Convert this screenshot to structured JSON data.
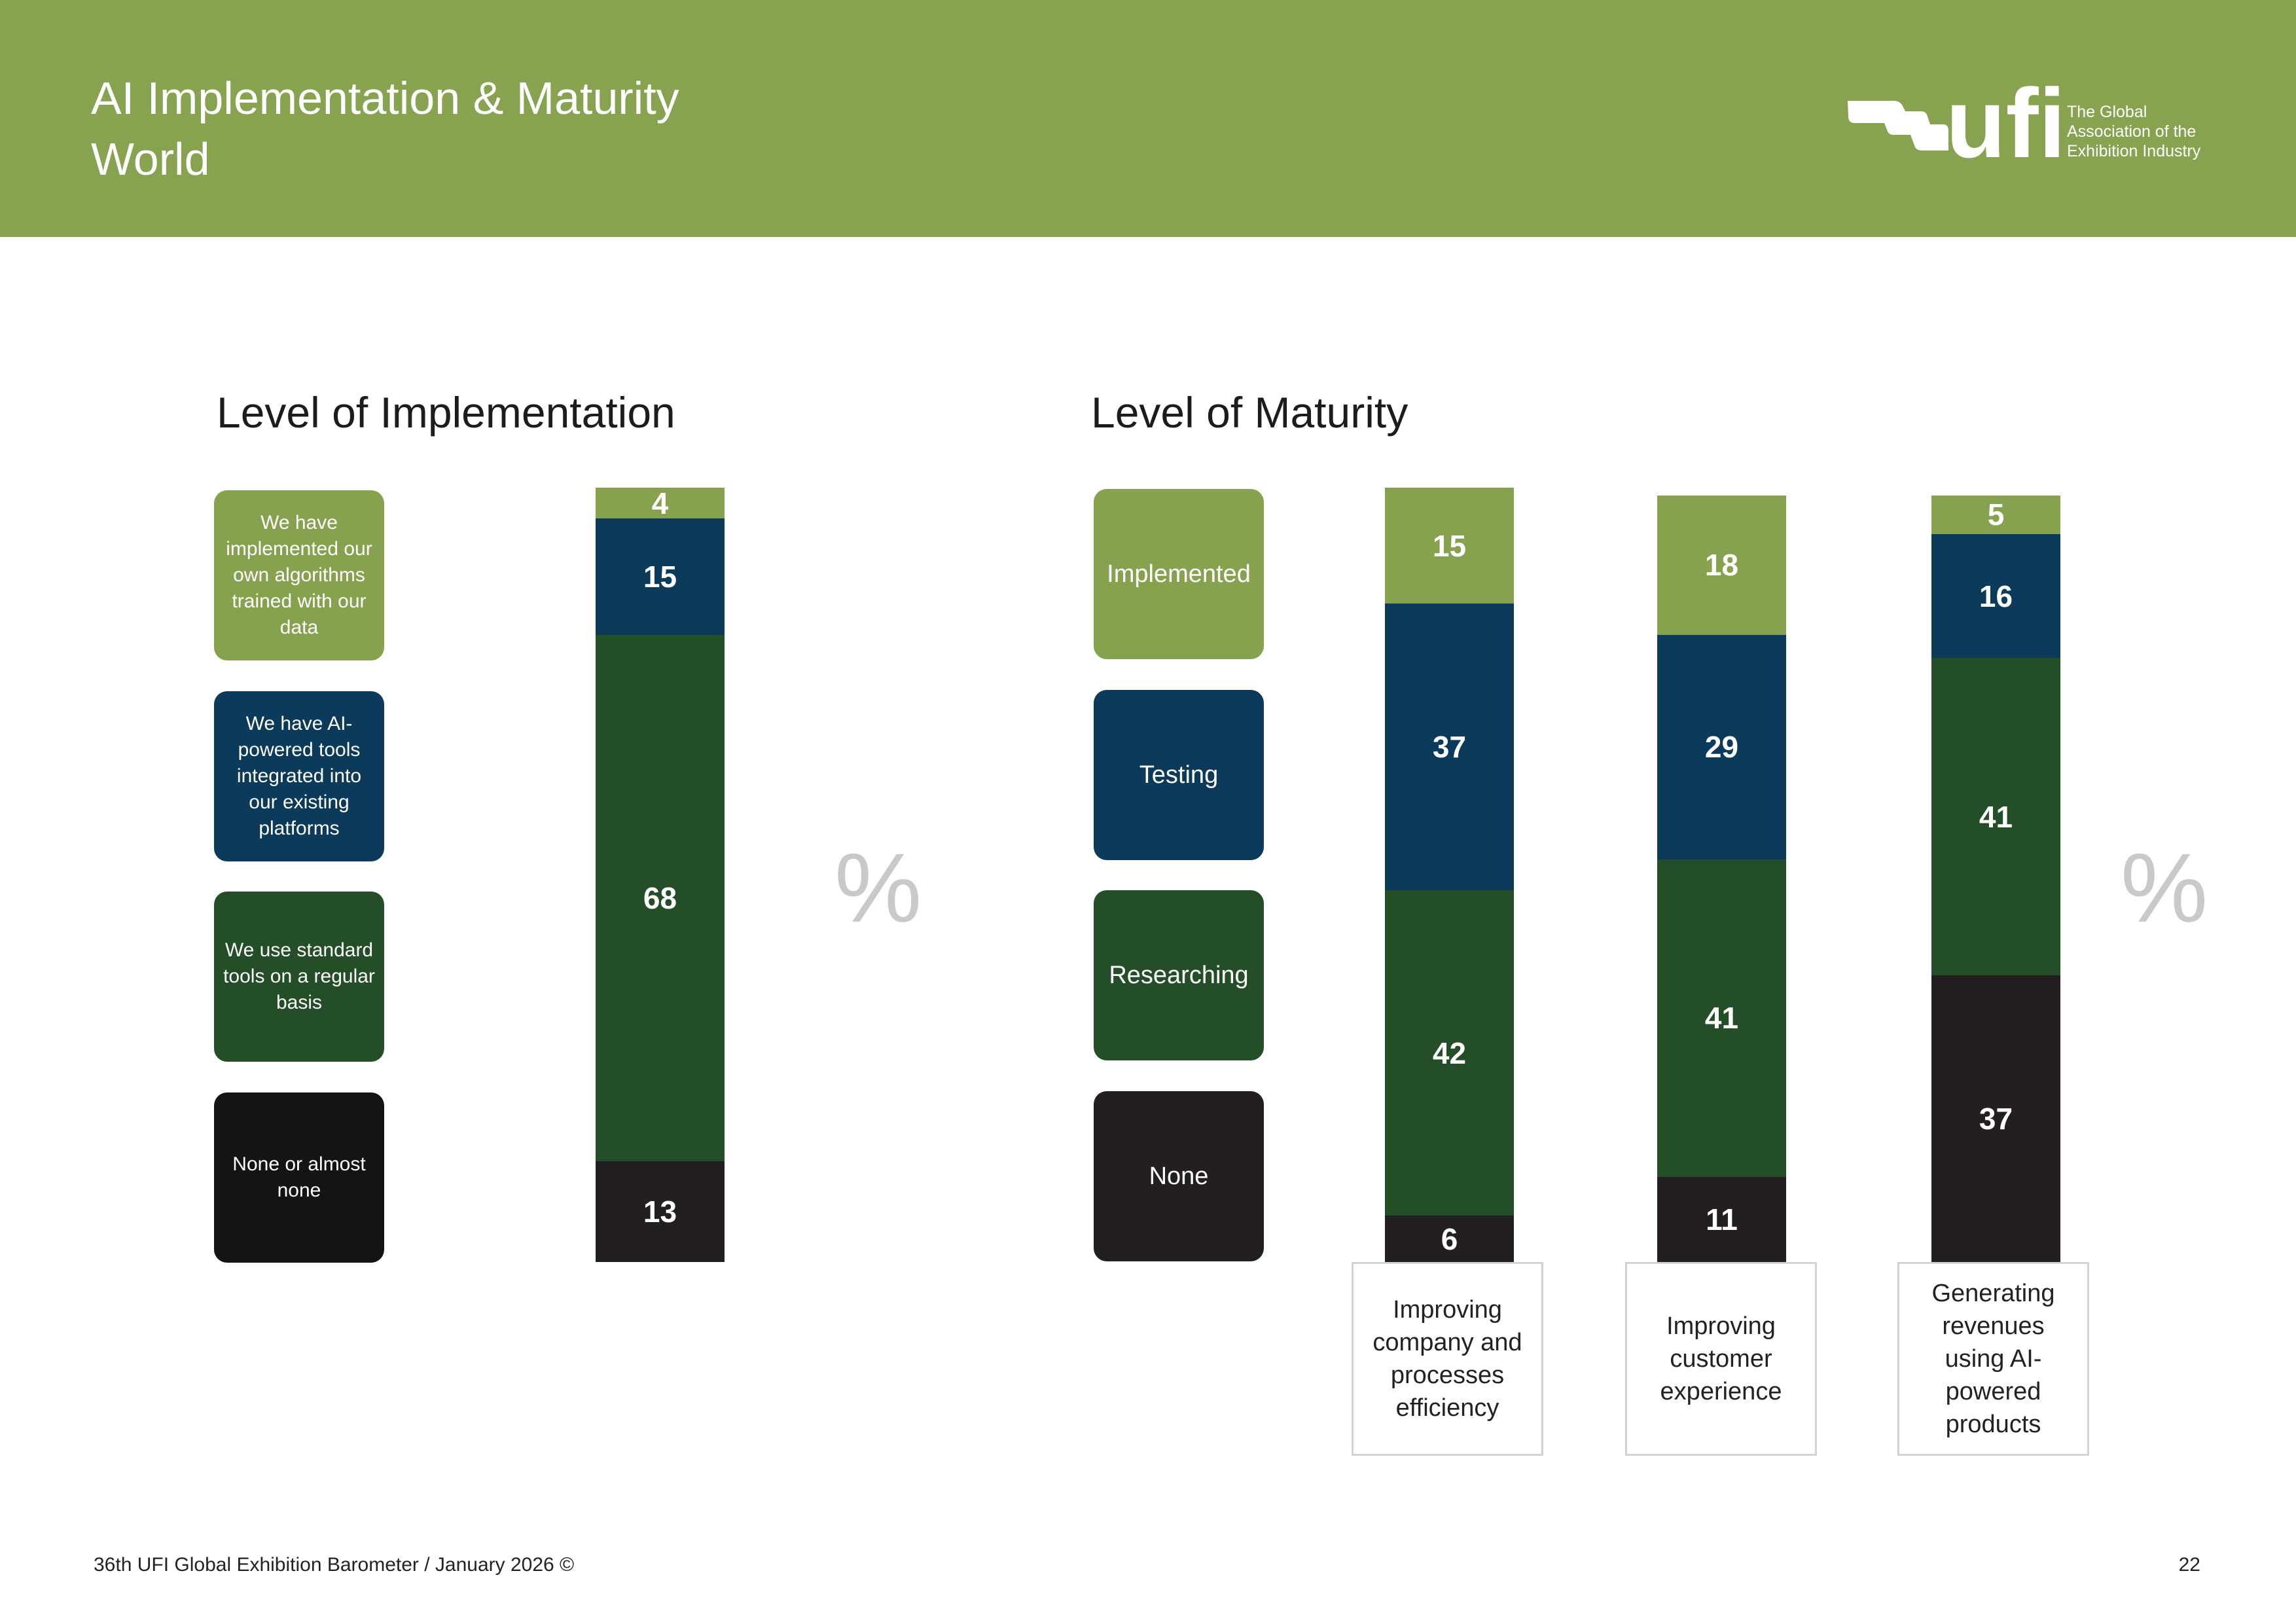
{
  "header": {
    "title_line1": "AI Implementation & Maturity",
    "title_line2": "World",
    "logo_word": "ufi",
    "logo_tagline": [
      "The Global",
      "Association of the",
      "Exhibition Industry"
    ]
  },
  "colors": {
    "implemented": "#87a24f",
    "testing": "#0c3a5a",
    "researching": "#234e28",
    "none": "#231f20",
    "header": "#88a350"
  },
  "percent_symbol": "%",
  "chart_data": [
    {
      "type": "bar",
      "stacked": true,
      "title": "Level of Implementation",
      "legend": [
        "We have implemented our own algorithms trained with our data",
        "We have AI-powered tools integrated into our existing platforms",
        "We use standard tools on a regular basis",
        "None or almost none"
      ],
      "categories": [
        "World"
      ],
      "series": [
        {
          "name": "We have implemented our own algorithms trained with our data",
          "values": [
            4
          ]
        },
        {
          "name": "We have AI-powered tools integrated into our existing platforms",
          "values": [
            15
          ]
        },
        {
          "name": "We use standard tools on a regular basis",
          "values": [
            68
          ]
        },
        {
          "name": "None or almost none",
          "values": [
            13
          ]
        }
      ],
      "ylabel": "%"
    },
    {
      "type": "bar",
      "stacked": true,
      "title": "Level of Maturity",
      "legend": [
        "Implemented",
        "Testing",
        "Researching",
        "None"
      ],
      "categories": [
        "Improving company and processes efficiency",
        "Improving customer experience",
        "Generating revenues using AI-powered products"
      ],
      "series": [
        {
          "name": "Implemented",
          "values": [
            15,
            18,
            5
          ]
        },
        {
          "name": "Testing",
          "values": [
            37,
            29,
            16
          ]
        },
        {
          "name": "Researching",
          "values": [
            42,
            41,
            41
          ]
        },
        {
          "name": "None",
          "values": [
            6,
            11,
            37
          ]
        }
      ],
      "ylabel": "%"
    }
  ],
  "footer": {
    "source": "36th UFI Global Exhibition Barometer / January 2026 ©",
    "page": "22"
  }
}
